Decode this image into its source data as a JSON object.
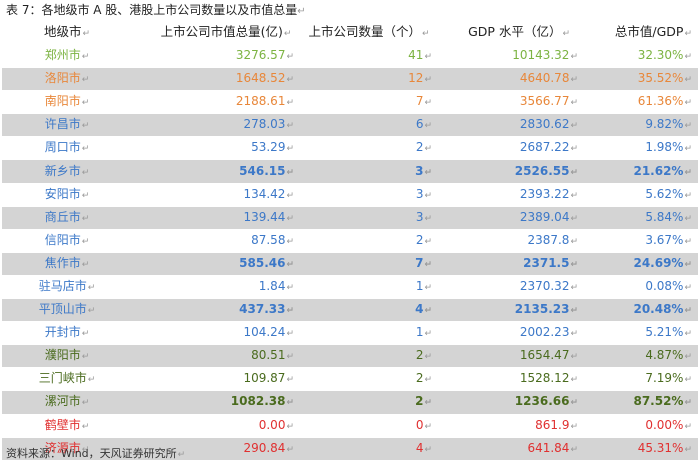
{
  "caption": "表 7：各地级市 A 股、港股上市公司数量以及市值总量",
  "para_mark": "↵",
  "headers": {
    "city": "地级市",
    "cap": "上市公司市值总量(亿)",
    "num": "上市公司数量（个）",
    "gdp": "GDP 水平（亿）",
    "ratio": "总市值/GDP"
  },
  "rows": [
    {
      "city": "郑州市",
      "cap": "3276.57",
      "num": "41",
      "gdp": "10143.32",
      "ratio": "32.30%",
      "color": "#7cb342",
      "bold": false
    },
    {
      "city": "洛阳市",
      "cap": "1648.52",
      "num": "12",
      "gdp": "4640.78",
      "ratio": "35.52%",
      "color": "#e8873a",
      "bold": false
    },
    {
      "city": "南阳市",
      "cap": "2188.61",
      "num": "7",
      "gdp": "3566.77",
      "ratio": "61.36%",
      "color": "#e8873a",
      "bold": false
    },
    {
      "city": "许昌市",
      "cap": "278.03",
      "num": "6",
      "gdp": "2830.62",
      "ratio": "9.82%",
      "color": "#3c78c8",
      "bold": false
    },
    {
      "city": "周口市",
      "cap": "53.29",
      "num": "2",
      "gdp": "2687.22",
      "ratio": "1.98%",
      "color": "#3c78c8",
      "bold": false
    },
    {
      "city": "新乡市",
      "cap": "546.15",
      "num": "3",
      "gdp": "2526.55",
      "ratio": "21.62%",
      "color": "#3c78c8",
      "bold": true
    },
    {
      "city": "安阳市",
      "cap": "134.42",
      "num": "3",
      "gdp": "2393.22",
      "ratio": "5.62%",
      "color": "#3c78c8",
      "bold": false
    },
    {
      "city": "商丘市",
      "cap": "139.44",
      "num": "3",
      "gdp": "2389.04",
      "ratio": "5.84%",
      "color": "#3c78c8",
      "bold": false
    },
    {
      "city": "信阳市",
      "cap": "87.58",
      "num": "2",
      "gdp": "2387.8",
      "ratio": "3.67%",
      "color": "#3c78c8",
      "bold": false
    },
    {
      "city": "焦作市",
      "cap": "585.46",
      "num": "7",
      "gdp": "2371.5",
      "ratio": "24.69%",
      "color": "#3c78c8",
      "bold": true
    },
    {
      "city": "驻马店市",
      "cap": "1.84",
      "num": "1",
      "gdp": "2370.32",
      "ratio": "0.08%",
      "color": "#3c78c8",
      "bold": false
    },
    {
      "city": "平顶山市",
      "cap": "437.33",
      "num": "4",
      "gdp": "2135.23",
      "ratio": "20.48%",
      "color": "#3c78c8",
      "bold": true
    },
    {
      "city": "开封市",
      "cap": "104.24",
      "num": "1",
      "gdp": "2002.23",
      "ratio": "5.21%",
      "color": "#3c78c8",
      "bold": false
    },
    {
      "city": "濮阳市",
      "cap": "80.51",
      "num": "2",
      "gdp": "1654.47",
      "ratio": "4.87%",
      "color": "#4a6b1e",
      "bold": false
    },
    {
      "city": "三门峡市",
      "cap": "109.87",
      "num": "2",
      "gdp": "1528.12",
      "ratio": "7.19%",
      "color": "#4a6b1e",
      "bold": false
    },
    {
      "city": "漯河市",
      "cap": "1082.38",
      "num": "2",
      "gdp": "1236.66",
      "ratio": "87.52%",
      "color": "#4a6b1e",
      "bold": true
    },
    {
      "city": "鹤壁市",
      "cap": "0.00",
      "num": "0",
      "gdp": "861.9",
      "ratio": "0.00%",
      "color": "#e03030",
      "bold": false
    },
    {
      "city": "济源市",
      "cap": "290.84",
      "num": "4",
      "gdp": "641.84",
      "ratio": "45.31%",
      "color": "#e03030",
      "bold": false
    }
  ],
  "source": "资料来源：Wind，天风证券研究所"
}
